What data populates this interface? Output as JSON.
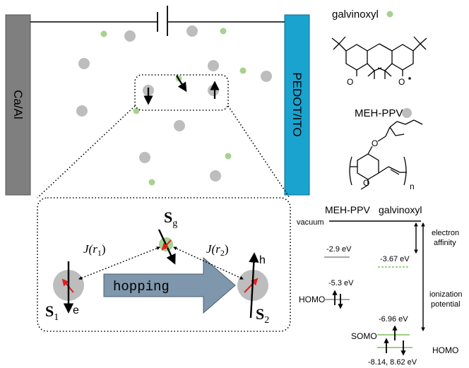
{
  "device": {
    "cathode_label": "Ca/Al",
    "anode_label": "PEDOT/ITO"
  },
  "legend": {
    "galvinoxyl_label": "galvinoxyl",
    "mehppv_label": "MEH-PPV",
    "polymer_subscript": "n"
  },
  "inset": {
    "sg_label": "S",
    "sg_sub": "g",
    "s1_label": "S",
    "s1_sub": "1",
    "s2_label": "S",
    "s2_sub": "2",
    "e_label": "e",
    "h_label": "h",
    "j1_label": "J(r",
    "j1_sub": "1",
    "j2_label": "J(r",
    "j2_sub": "2",
    "close_paren": ")",
    "hopping_label": "hopping"
  },
  "energy": {
    "col_mehppv": "MEH-PPV",
    "col_galvinoxyl": "galvinoxyl",
    "vacuum_label": "vacuum",
    "electron_affinity_1": "electron",
    "electron_affinity_2": "affinity",
    "ionization_1": "ionization",
    "ionization_2": "potential",
    "lumo_mehppv": "-2.9 eV",
    "lumo_galvinoxyl": "-3.67 eV",
    "homo_mehppv": "-5.3 eV",
    "homo_label_left": "HOMO",
    "somo_value": "-6.96 eV",
    "somo_label": "SOMO",
    "homo_galvinoxyl": "-8.14, 8.62 eV",
    "homo_label_right": "HOMO"
  },
  "colors": {
    "cathode": "#7f7f7f",
    "anode": "#1aa3cf",
    "galvinoxyl_dot": "#a6d28f",
    "mehppv_dot": "#bdbdbd",
    "hopping_arrow": "#7f97ac",
    "spin_red": "#e02020",
    "level_gray": "#8a8a8a",
    "level_green": "#7cc05a"
  }
}
